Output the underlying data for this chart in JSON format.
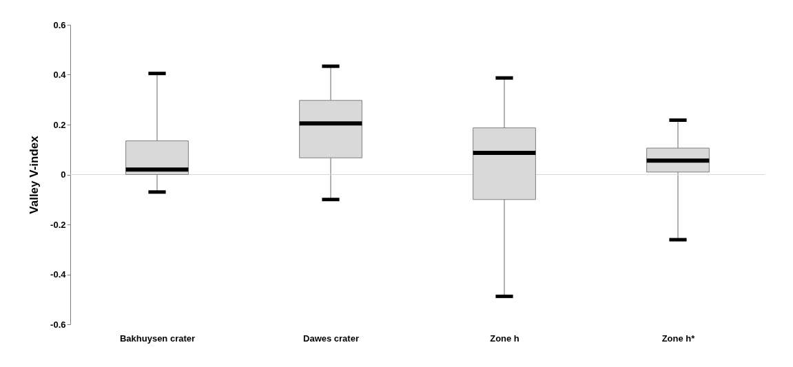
{
  "chart_data": {
    "type": "box",
    "ylabel": "Valley V-index",
    "categories": [
      "Bakhuysen crater",
      "Dawes crater",
      "Zone h",
      "Zone h*"
    ],
    "boxes": [
      {
        "low": -0.07,
        "q1": 0.0,
        "median": 0.02,
        "q3": 0.135,
        "high": 0.405
      },
      {
        "low": -0.1,
        "q1": 0.067,
        "median": 0.205,
        "q3": 0.297,
        "high": 0.434
      },
      {
        "low": -0.488,
        "q1": -0.1,
        "median": 0.087,
        "q3": 0.187,
        "high": 0.387
      },
      {
        "low": -0.261,
        "q1": 0.01,
        "median": 0.056,
        "q3": 0.106,
        "high": 0.218
      }
    ],
    "color": "#d9d9d9",
    "ylim": [
      -0.6,
      0.6
    ],
    "yticks": [
      -0.6,
      -0.4,
      -0.2,
      0,
      0.2,
      0.4,
      0.6
    ],
    "ref_lines": [
      {
        "axis": "y",
        "value": 0,
        "color": "#d9d9d9"
      }
    ],
    "grid": false
  }
}
